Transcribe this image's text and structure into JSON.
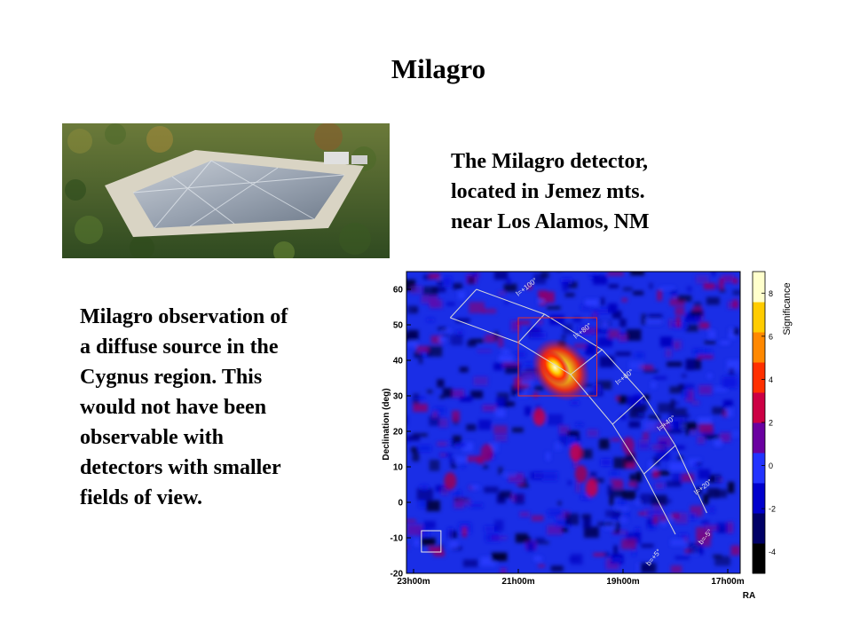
{
  "slide": {
    "title": "Milagro"
  },
  "detector_caption": {
    "lines": [
      "The Milagro detector,",
      "located in Jemez mts.",
      "near Los Alamos, NM"
    ]
  },
  "observation_caption": {
    "lines": [
      "Milagro observation of",
      "a diffuse source in the",
      "Cygnus region.  This",
      "would not have been",
      "observable with",
      "detectors with smaller",
      "fields of view."
    ]
  },
  "chart_data": {
    "type": "heatmap",
    "title": "",
    "xlabel": "RA",
    "ylabel": "Declination (deg)",
    "x_ticks": [
      "23h00m",
      "21h00m",
      "19h00m",
      "17h00m"
    ],
    "y_ticks": [
      -20,
      -10,
      0,
      10,
      20,
      30,
      40,
      50,
      60
    ],
    "ylim": [
      -20,
      65
    ],
    "colorbar": {
      "label": "Significance",
      "ticks": [
        -4,
        -2,
        0,
        2,
        4,
        6,
        8
      ],
      "range": [
        -5,
        9
      ],
      "colors": [
        "#000000",
        "#000066",
        "#0000cc",
        "#2233ff",
        "#6a00a0",
        "#cc0044",
        "#ff3000",
        "#ff8800",
        "#ffcc00",
        "#ffffcc"
      ]
    },
    "galactic_longitude_labels": [
      "l=+100°",
      "l=+80°",
      "l=+60°",
      "l=+40°",
      "l=+20°"
    ],
    "galactic_latitude_labels": [
      "b=+5°",
      "b=-5°"
    ],
    "hotspot": {
      "ra_hours": 20.3,
      "dec_deg": 38,
      "peak_significance": 9
    }
  }
}
